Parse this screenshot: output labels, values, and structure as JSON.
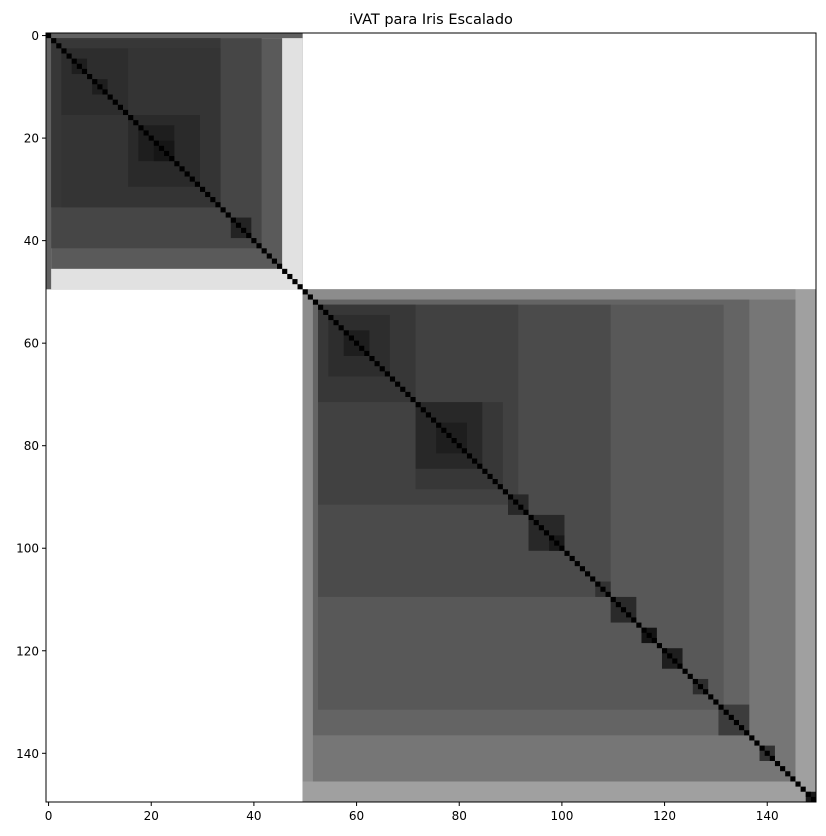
{
  "chart_data": {
    "type": "heatmap",
    "title": "iVAT para Iris Escalado",
    "xlabel": "",
    "ylabel": "",
    "n": 150,
    "xlim": [
      -0.5,
      149.5
    ],
    "ylim": [
      149.5,
      -0.5
    ],
    "grid": false,
    "colormap": "gray",
    "x_ticks": [
      0,
      20,
      40,
      60,
      80,
      100,
      120,
      140
    ],
    "y_ticks": [
      0,
      20,
      40,
      60,
      80,
      100,
      120,
      140
    ],
    "x_tick_labels": [
      "0",
      "20",
      "40",
      "60",
      "80",
      "100",
      "120",
      "140"
    ],
    "y_tick_labels": [
      "0",
      "20",
      "40",
      "60",
      "80",
      "100",
      "120",
      "140"
    ],
    "clusters": [
      {
        "start": 0,
        "end": 50,
        "gray": 96
      },
      {
        "start": 50,
        "end": 150,
        "gray": 96
      }
    ],
    "between_cluster_gray": 255,
    "diagonal_gray": 0,
    "blocks": [
      {
        "start": 1,
        "end": 50,
        "gray": 225
      },
      {
        "start": 1,
        "end": 46,
        "gray": 90
      },
      {
        "start": 1,
        "end": 42,
        "gray": 70
      },
      {
        "start": 1,
        "end": 34,
        "gray": 55
      },
      {
        "start": 3,
        "end": 34,
        "gray": 52
      },
      {
        "start": 3,
        "end": 16,
        "gray": 45
      },
      {
        "start": 5,
        "end": 8,
        "gray": 30
      },
      {
        "start": 9,
        "end": 12,
        "gray": 30
      },
      {
        "start": 16,
        "end": 30,
        "gray": 42
      },
      {
        "start": 18,
        "end": 25,
        "gray": 30
      },
      {
        "start": 21,
        "end": 25,
        "gray": 22
      },
      {
        "start": 36,
        "end": 40,
        "gray": 35
      },
      {
        "start": 50,
        "end": 150,
        "gray": 160
      },
      {
        "start": 50,
        "end": 146,
        "gray": 140
      },
      {
        "start": 52,
        "end": 146,
        "gray": 118
      },
      {
        "start": 52,
        "end": 137,
        "gray": 100
      },
      {
        "start": 53,
        "end": 132,
        "gray": 88
      },
      {
        "start": 53,
        "end": 110,
        "gray": 75
      },
      {
        "start": 53,
        "end": 92,
        "gray": 65
      },
      {
        "start": 53,
        "end": 72,
        "gray": 55
      },
      {
        "start": 55,
        "end": 67,
        "gray": 45
      },
      {
        "start": 58,
        "end": 63,
        "gray": 30
      },
      {
        "start": 72,
        "end": 89,
        "gray": 55
      },
      {
        "start": 72,
        "end": 85,
        "gray": 40
      },
      {
        "start": 76,
        "end": 82,
        "gray": 30
      },
      {
        "start": 90,
        "end": 94,
        "gray": 40
      },
      {
        "start": 94,
        "end": 101,
        "gray": 40
      },
      {
        "start": 98,
        "end": 101,
        "gray": 25
      },
      {
        "start": 107,
        "end": 110,
        "gray": 50
      },
      {
        "start": 110,
        "end": 115,
        "gray": 42
      },
      {
        "start": 116,
        "end": 119,
        "gray": 20
      },
      {
        "start": 120,
        "end": 124,
        "gray": 30
      },
      {
        "start": 126,
        "end": 129,
        "gray": 45
      },
      {
        "start": 131,
        "end": 137,
        "gray": 60
      },
      {
        "start": 139,
        "end": 142,
        "gray": 50
      },
      {
        "start": 148,
        "end": 150,
        "gray": 25
      }
    ]
  }
}
